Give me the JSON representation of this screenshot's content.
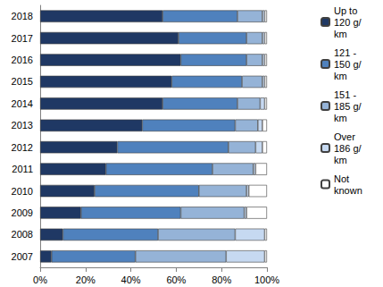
{
  "chart_data": {
    "type": "bar",
    "orientation": "horizontal",
    "stacked": true,
    "grid": false,
    "legend": "right",
    "categories": [
      "2007",
      "2008",
      "2009",
      "2010",
      "2011",
      "2012",
      "2013",
      "2014",
      "2015",
      "2016",
      "2017",
      "2018"
    ],
    "series": [
      {
        "name": "Up to 120 g/km",
        "color": "#1f3864",
        "values": [
          5,
          10,
          18,
          24,
          29,
          34,
          45,
          54,
          58,
          62,
          61,
          54
        ]
      },
      {
        "name": "121 - 150 g/km",
        "color": "#4f81bd",
        "values": [
          37,
          42,
          44,
          46,
          47,
          49,
          41,
          33,
          31,
          29,
          30,
          33
        ]
      },
      {
        "name": "151 - 185 g/km",
        "color": "#95b3d7",
        "values": [
          40,
          34,
          28,
          21,
          18,
          12,
          10,
          10,
          9,
          7,
          7,
          11
        ]
      },
      {
        "name": "Over 186 g/km",
        "color": "#c6d9f1",
        "values": [
          17,
          13,
          1,
          1,
          1,
          3,
          2,
          2,
          1,
          1,
          1,
          1
        ]
      },
      {
        "name": "Not known",
        "color": "#ffffff",
        "values": [
          1,
          1,
          9,
          8,
          5,
          2,
          2,
          1,
          1,
          1,
          1,
          1
        ]
      }
    ],
    "xlim": [
      0,
      100
    ],
    "xticks": [
      {
        "value": 0,
        "label": "0%"
      },
      {
        "value": 20,
        "label": "20%"
      },
      {
        "value": 40,
        "label": "40%"
      },
      {
        "value": 60,
        "label": "60%"
      },
      {
        "value": 80,
        "label": "80%"
      },
      {
        "value": 100,
        "label": "100%"
      }
    ]
  }
}
